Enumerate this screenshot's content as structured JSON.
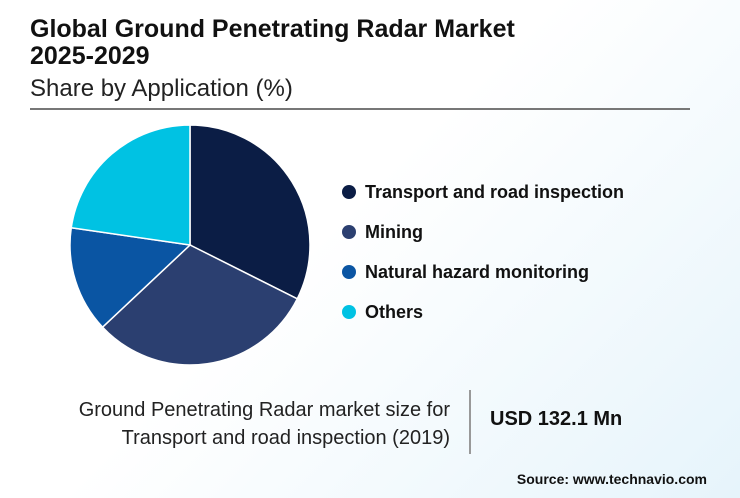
{
  "header": {
    "title_line1": "Global Ground Penetrating Radar Market",
    "title_line2": "2025-2029",
    "subtitle": "Share by Application (%)"
  },
  "chart_data": {
    "type": "pie",
    "title": "Global Ground Penetrating Radar Market 2025-2029 - Share by Application (%)",
    "categories": [
      "Transport and road inspection",
      "Mining",
      "Natural hazard monitoring",
      "Others"
    ],
    "values": [
      32.4,
      30.6,
      14.3,
      22.7
    ],
    "colors": [
      "#0b1d45",
      "#2b3f70",
      "#0a55a3",
      "#00c2e3"
    ],
    "legend_position": "right"
  },
  "stat": {
    "label_line1": "Ground Penetrating Radar market size for",
    "label_line2": "Transport and road inspection (2019)",
    "value": "USD 132.1 Mn"
  },
  "source": "Source: www.technavio.com"
}
